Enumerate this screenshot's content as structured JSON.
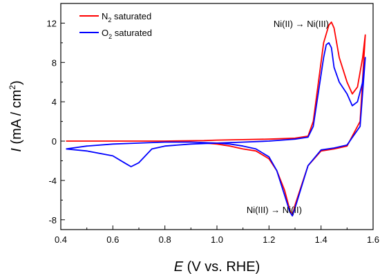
{
  "chart_data": {
    "type": "line",
    "xlabel_var": "E",
    "xlabel_rest": " (V vs. RHE)",
    "ylabel_var": "I",
    "ylabel_rest": " (mA / cm",
    "ylabel_sup": "2",
    "ylabel_close": ")",
    "xlim": [
      0.4,
      1.6
    ],
    "ylim": [
      -9,
      14
    ],
    "xticks": [
      0.4,
      0.6,
      0.8,
      1.0,
      1.2,
      1.4,
      1.6
    ],
    "xtick_labels": [
      "0.4",
      "0.6",
      "0.8",
      "1.0",
      "1.2",
      "1.4",
      "1.6"
    ],
    "yticks": [
      -8,
      -4,
      0,
      4,
      8,
      12
    ],
    "ytick_labels": [
      "-8",
      "-4",
      "0",
      "4",
      "8",
      "12"
    ],
    "grid": false,
    "legend_position": "top-left",
    "series": [
      {
        "name_main": "N",
        "name_sub": "2",
        "name_rest": " saturated",
        "color": "#ff0000",
        "x": [
          0.42,
          0.6,
          0.8,
          0.95,
          1.0,
          1.1,
          1.2,
          1.3,
          1.35,
          1.37,
          1.39,
          1.41,
          1.43,
          1.44,
          1.45,
          1.47,
          1.5,
          1.52,
          1.54,
          1.56,
          1.57,
          1.55,
          1.5,
          1.45,
          1.4,
          1.35,
          1.3,
          1.29,
          1.28,
          1.26,
          1.23,
          1.2,
          1.15,
          1.1,
          1.05,
          1.0,
          0.95
        ],
        "y": [
          0.0,
          0.0,
          0.0,
          0.05,
          0.1,
          0.15,
          0.2,
          0.3,
          0.5,
          2.0,
          6.0,
          10.0,
          11.8,
          12.1,
          11.5,
          8.5,
          6.0,
          4.8,
          5.5,
          8.5,
          10.8,
          2.0,
          -0.5,
          -0.8,
          -1.0,
          -2.5,
          -6.5,
          -7.6,
          -7.0,
          -5.0,
          -3.0,
          -1.8,
          -1.0,
          -0.8,
          -0.5,
          -0.3,
          -0.2
        ]
      },
      {
        "name_main": "O",
        "name_sub": "2",
        "name_rest": " saturated",
        "color": "#0000ff",
        "x": [
          0.42,
          0.5,
          0.6,
          0.65,
          0.67,
          0.7,
          0.75,
          0.8,
          0.9,
          1.0,
          1.1,
          1.2,
          1.3,
          1.35,
          1.37,
          1.39,
          1.41,
          1.42,
          1.43,
          1.44,
          1.45,
          1.47,
          1.5,
          1.52,
          1.54,
          1.56,
          1.57,
          1.55,
          1.5,
          1.45,
          1.4,
          1.35,
          1.3,
          1.29,
          1.28,
          1.26,
          1.23,
          1.2,
          1.15,
          1.1,
          1.05,
          1.0,
          0.9,
          0.8,
          0.7,
          0.6,
          0.5,
          0.42
        ],
        "y": [
          -0.8,
          -1.0,
          -1.5,
          -2.3,
          -2.6,
          -2.2,
          -0.8,
          -0.5,
          -0.3,
          -0.2,
          -0.1,
          0.0,
          0.2,
          0.4,
          1.5,
          5.0,
          8.5,
          9.8,
          10.0,
          9.5,
          7.5,
          6.0,
          4.8,
          3.6,
          4.0,
          6.0,
          8.5,
          1.5,
          -0.4,
          -0.7,
          -0.9,
          -2.5,
          -6.8,
          -7.6,
          -7.2,
          -5.5,
          -3.0,
          -1.6,
          -0.8,
          -0.5,
          -0.3,
          -0.2,
          -0.1,
          -0.1,
          -0.2,
          -0.3,
          -0.5,
          -0.8
        ]
      }
    ],
    "annotations": [
      {
        "text": "Ni(II) → Ni(III)",
        "x": 1.43,
        "y": 11.6
      },
      {
        "text": "Ni(III) → Ni(II)",
        "x": 1.22,
        "y": -7.3
      }
    ]
  }
}
